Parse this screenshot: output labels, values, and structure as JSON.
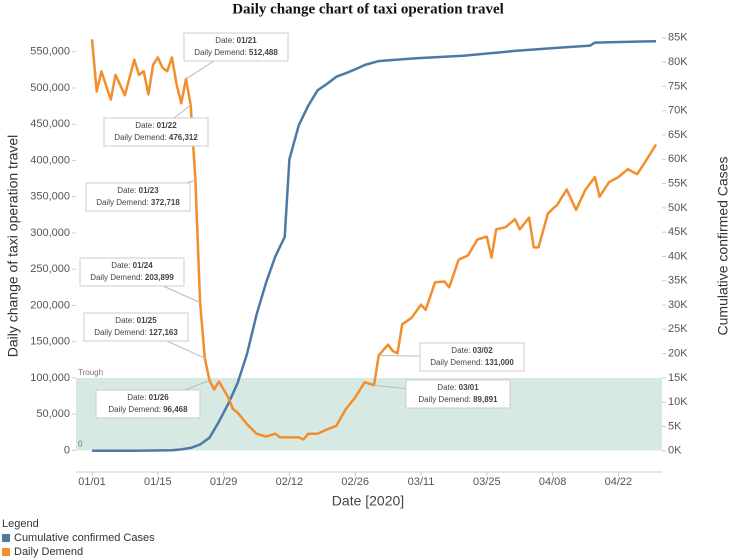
{
  "chart_data": {
    "type": "line",
    "title": "Daily change chart of taxi operation travel",
    "xlabel": "Date [2020]",
    "ylabel": "Daily change  of taxi operation travel",
    "y2label": "Cumulative confirmed Cases",
    "xlim": [
      "01/01",
      "04/30"
    ],
    "xticks": [
      "01/01",
      "01/15",
      "01/29",
      "02/12",
      "02/26",
      "03/11",
      "03/25",
      "04/08",
      "04/22"
    ],
    "ylim": [
      -16000,
      580000
    ],
    "yticks": [
      0,
      {
        "value": 50000,
        "label": "50,000"
      },
      {
        "value": 100000,
        "label": "100,000"
      },
      {
        "value": 150000,
        "label": "150,000"
      },
      {
        "value": 200000,
        "label": "200,000"
      },
      {
        "value": 250000,
        "label": "250,000"
      },
      {
        "value": 300000,
        "label": "300,000"
      },
      {
        "value": 350000,
        "label": "350,000"
      },
      {
        "value": 400000,
        "label": "400,000"
      },
      {
        "value": 450000,
        "label": "450,000"
      },
      {
        "value": 500000,
        "label": "500,000"
      },
      {
        "value": 550000,
        "label": "550,000"
      }
    ],
    "y2lim": [
      -2300,
      86600
    ],
    "y2ticks": [
      {
        "value": 0,
        "label": "0K"
      },
      {
        "value": 5000,
        "label": "5K"
      },
      {
        "value": 10000,
        "label": "10K"
      },
      {
        "value": 15000,
        "label": "15K"
      },
      {
        "value": 20000,
        "label": "20K"
      },
      {
        "value": 25000,
        "label": "25K"
      },
      {
        "value": 30000,
        "label": "30K"
      },
      {
        "value": 35000,
        "label": "35K"
      },
      {
        "value": 40000,
        "label": "40K"
      },
      {
        "value": 45000,
        "label": "45K"
      },
      {
        "value": 50000,
        "label": "50K"
      },
      {
        "value": 55000,
        "label": "55K"
      },
      {
        "value": 60000,
        "label": "60K"
      },
      {
        "value": 65000,
        "label": "65K"
      },
      {
        "value": 70000,
        "label": "70K"
      },
      {
        "value": 75000,
        "label": "75K"
      },
      {
        "value": 80000,
        "label": "80K"
      },
      {
        "value": 85000,
        "label": "85K"
      }
    ],
    "band": {
      "from": 0,
      "to": 100000,
      "label": "Trough",
      "color": "#d6e9e3"
    },
    "annotation_date_prefix": "Date:",
    "annotation_value_prefix": "Daily Demend:",
    "legend_title": "Legend",
    "series": [
      {
        "name": "Cumulative confirmed Cases",
        "color": "#4e79a7",
        "axis": "y2",
        "x": [
          "01/01",
          "01/10",
          "01/18",
          "01/20",
          "01/22",
          "01/24",
          "01/26",
          "01/28",
          "01/30",
          "02/01",
          "02/03",
          "02/05",
          "02/07",
          "02/09",
          "02/11",
          "02/12",
          "02/14",
          "02/16",
          "02/18",
          "02/20",
          "02/22",
          "02/24",
          "02/26",
          "02/28",
          "03/02",
          "03/10",
          "03/20",
          "03/31",
          "04/10",
          "04/16",
          "04/17",
          "04/30"
        ],
        "values": [
          0,
          0,
          100,
          300,
          600,
          1300,
          2700,
          6000,
          9700,
          14000,
          20000,
          28000,
          34500,
          40000,
          44000,
          60000,
          67000,
          71000,
          74200,
          75500,
          77000,
          77700,
          78500,
          79400,
          80200,
          80800,
          81300,
          82300,
          83000,
          83400,
          84000,
          84300
        ]
      },
      {
        "name": "Daily Demend",
        "color": "#f28e2b",
        "x": [
          "01/01",
          "01/02",
          "01/03",
          "01/05",
          "01/06",
          "01/08",
          "01/10",
          "01/11",
          "01/12",
          "01/13",
          "01/14",
          "01/15",
          "01/16",
          "01/17",
          "01/18",
          "01/19",
          "01/20",
          "01/21",
          "01/22",
          "01/23",
          "01/24",
          "01/25",
          "01/26",
          "01/27",
          "01/28",
          "01/29",
          "01/30",
          "01/31",
          "02/01",
          "02/03",
          "02/05",
          "02/07",
          "02/09",
          "02/10",
          "02/12",
          "02/14",
          "02/15",
          "02/16",
          "02/18",
          "02/20",
          "02/22",
          "02/24",
          "02/26",
          "02/28",
          "02/29",
          "03/01",
          "03/02",
          "03/04",
          "03/05",
          "03/06",
          "03/07",
          "03/09",
          "03/11",
          "03/12",
          "03/14",
          "03/16",
          "03/17",
          "03/19",
          "03/21",
          "03/23",
          "03/25",
          "03/26",
          "03/27",
          "03/29",
          "03/31",
          "04/01",
          "04/03",
          "04/04",
          "04/05",
          "04/07",
          "04/09",
          "04/11",
          "04/13",
          "04/15",
          "04/17",
          "04/18",
          "04/20",
          "04/22",
          "04/24",
          "04/26",
          "04/28",
          "04/30"
        ],
        "values": [
          567000,
          495000,
          523000,
          484000,
          518000,
          490000,
          539000,
          518000,
          523000,
          491000,
          532000,
          542000,
          528000,
          523000,
          542000,
          505000,
          479000,
          512488,
          476312,
          372718,
          203899,
          127163,
          96468,
          84000,
          95000,
          84000,
          73000,
          57000,
          52000,
          36000,
          23000,
          19000,
          23000,
          18000,
          18000,
          18000,
          15000,
          23000,
          23000,
          29000,
          34000,
          57000,
          73000,
          94000,
          92000,
          89891,
          131000,
          146000,
          137000,
          134000,
          174000,
          183000,
          201000,
          194000,
          232000,
          233000,
          225000,
          263000,
          269000,
          291000,
          295000,
          266000,
          305000,
          308000,
          319000,
          305000,
          321000,
          280000,
          280000,
          327000,
          339000,
          360000,
          332000,
          360000,
          377000,
          350000,
          370000,
          377000,
          388000,
          381000,
          401000,
          422000
        ],
        "value_labels": [
          null,
          null,
          null,
          null,
          null,
          null,
          null,
          null,
          null,
          null,
          null,
          null,
          null,
          null,
          null,
          null,
          null,
          "512,488",
          "476,312",
          "372,718",
          "203,899",
          "127,163",
          "96,468",
          null,
          null,
          null,
          null,
          null,
          null,
          null,
          null,
          null,
          null,
          null,
          null,
          null,
          null,
          null,
          null,
          null,
          null,
          null,
          null,
          null,
          null,
          "89,891",
          "131,000",
          null,
          null,
          null,
          null,
          null,
          null,
          null,
          null,
          null,
          null,
          null,
          null,
          null,
          null,
          null,
          null,
          null,
          null,
          null,
          null,
          null,
          null,
          null,
          null,
          null,
          null,
          null,
          null,
          null,
          null,
          null,
          null,
          null,
          null,
          null
        ]
      }
    ]
  }
}
